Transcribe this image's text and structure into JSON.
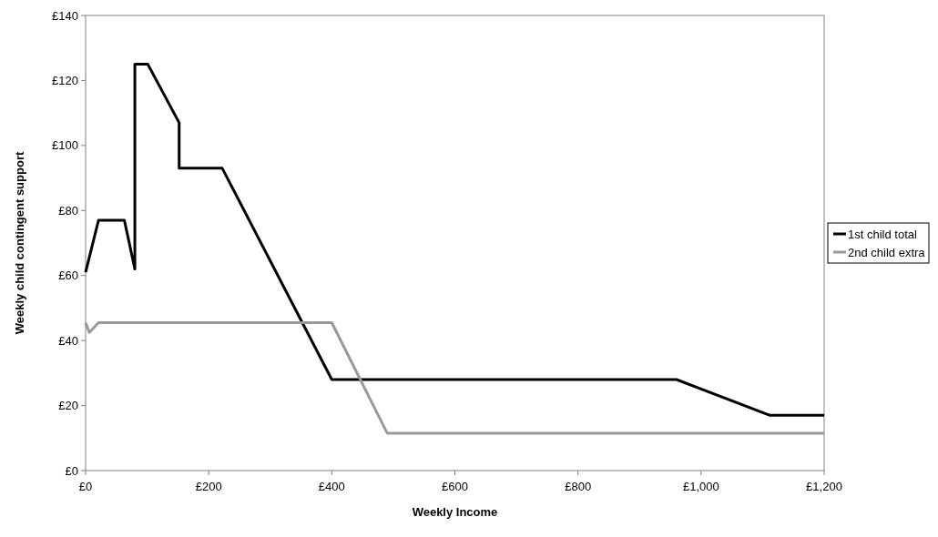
{
  "chart_data": {
    "type": "line",
    "xlabel": "Weekly Income",
    "ylabel": "Weekly child contingent support",
    "xlim": [
      0,
      1200
    ],
    "ylim": [
      0,
      140
    ],
    "xticks": [
      {
        "value": 0,
        "label": "£0"
      },
      {
        "value": 200,
        "label": "£200"
      },
      {
        "value": 400,
        "label": "£400"
      },
      {
        "value": 600,
        "label": "£600"
      },
      {
        "value": 800,
        "label": "£800"
      },
      {
        "value": 1000,
        "label": "£1,000"
      },
      {
        "value": 1200,
        "label": "£1,200"
      }
    ],
    "yticks": [
      {
        "value": 0,
        "label": "£0"
      },
      {
        "value": 20,
        "label": "£20"
      },
      {
        "value": 40,
        "label": "£40"
      },
      {
        "value": 60,
        "label": "£60"
      },
      {
        "value": 80,
        "label": "£80"
      },
      {
        "value": 100,
        "label": "£100"
      },
      {
        "value": 120,
        "label": "£120"
      },
      {
        "value": 140,
        "label": "£140"
      }
    ],
    "grid": false,
    "legend": "right",
    "marker": "none",
    "line_style": "solid",
    "series": [
      {
        "name": "1st child total",
        "color": "#000000",
        "x": [
          0,
          21,
          63,
          80,
          80,
          101,
          152,
          152,
          222,
          400,
          960,
          1112,
          1200
        ],
        "values": [
          61,
          77,
          77,
          62,
          125,
          125,
          107,
          93,
          93,
          28,
          28,
          17,
          17
        ]
      },
      {
        "name": "2nd child extra",
        "color": "#999999",
        "x": [
          0,
          6,
          21,
          400,
          490,
          1200
        ],
        "values": [
          45.5,
          42.5,
          45.5,
          45.5,
          11.5,
          11.5
        ]
      }
    ]
  }
}
